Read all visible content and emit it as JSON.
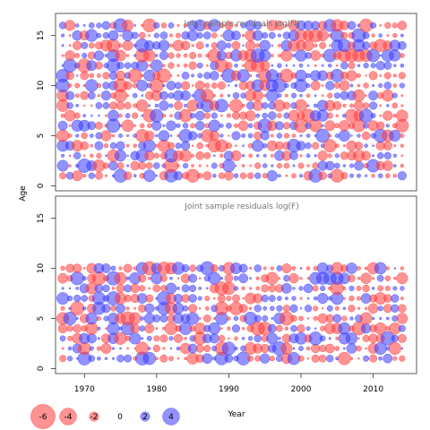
{
  "chart_data": [
    {
      "type": "scatter",
      "title": "Joint sample residuals log(N)",
      "xlabel": "",
      "ylabel": "Age",
      "xlim": [
        1966,
        2016
      ],
      "ylim": [
        -0.5,
        17.2
      ],
      "yticks": [
        0,
        5,
        10,
        15
      ],
      "x_range": [
        1967,
        2014
      ],
      "y_range": [
        1,
        16
      ],
      "grid": false,
      "encoding": "bubble size ~ |residual|; red = negative, blue = positive",
      "seed": 7
    },
    {
      "type": "scatter",
      "title": "Joint sample residuals log(F)",
      "xlabel": "Year",
      "ylabel": "",
      "xlim": [
        1966,
        2016
      ],
      "ylim": [
        -0.5,
        17.2
      ],
      "xticks": [
        1970,
        1980,
        1990,
        2000,
        2010
      ],
      "yticks": [
        0,
        5,
        10,
        15
      ],
      "x_range": [
        1967,
        2014
      ],
      "y_range": [
        1,
        10
      ],
      "grid": false,
      "encoding": "bubble size ~ |residual|; red = negative, blue = positive",
      "seed": 13
    }
  ],
  "legend": {
    "items": [
      {
        "label": "-6",
        "value": -6
      },
      {
        "label": "-4",
        "value": -4
      },
      {
        "label": "-2",
        "value": -2
      },
      {
        "label": "0",
        "value": 0
      },
      {
        "label": "2",
        "value": 2
      },
      {
        "label": "4",
        "value": 4
      }
    ]
  },
  "colors": {
    "negative": "#ff3b3b",
    "positive": "#3a3aff",
    "frame": "#333333"
  },
  "labels": {
    "age": "Age",
    "year": "Year"
  }
}
